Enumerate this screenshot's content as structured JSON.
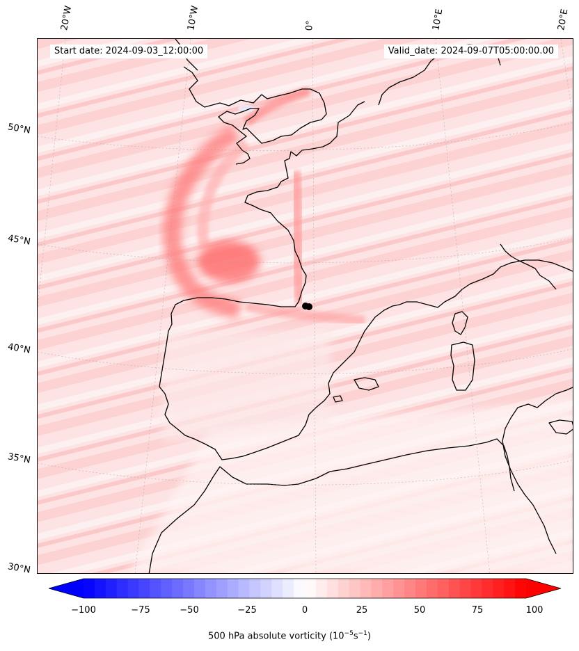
{
  "header": {
    "start_date": "Start date: 2024-09-03_12:00:00",
    "valid_date": "Valid_date: 2024-09-07T05:00:00.00"
  },
  "grid": {
    "lon_labels": [
      "20°W",
      "10°W",
      "0°",
      "10°E",
      "20°E"
    ],
    "lat_labels": [
      "50°N",
      "45°N",
      "40°N",
      "35°N",
      "30°N"
    ]
  },
  "colorbar": {
    "ticks": [
      "−100",
      "−75",
      "−50",
      "−25",
      "0",
      "25",
      "50",
      "75",
      "100"
    ],
    "label": "500 hPa absolute vorticity (10",
    "label_exp1": "−5",
    "label_mid": "s",
    "label_exp2": "−1",
    "label_end": ")",
    "min": -100,
    "max": 100,
    "levels": 40,
    "colormap": "bwr",
    "colors": {
      "neg": "#0000ff",
      "mid": "#ffffff",
      "pos": "#ff0000"
    }
  },
  "field": {
    "background_vorticity_level": 12,
    "features": [
      {
        "name": "arc-band-west",
        "level": 55
      },
      {
        "name": "bay-of-biscay-max",
        "level": 70
      },
      {
        "name": "channel-streak",
        "level": 50
      },
      {
        "name": "french-coast-band",
        "level": 45
      },
      {
        "name": "pyrenees-tail",
        "level": 35
      }
    ]
  },
  "marker": {
    "label": "",
    "color": "#000000"
  }
}
